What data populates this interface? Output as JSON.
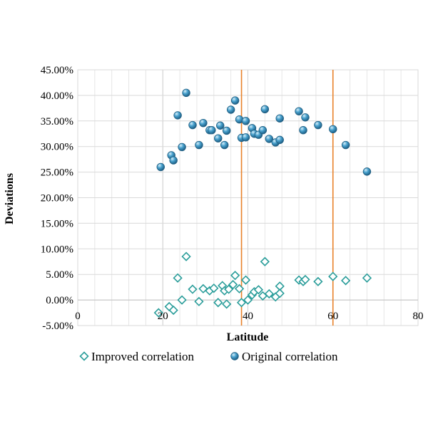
{
  "chart_data": {
    "type": "scatter",
    "xlabel": "Latitude",
    "ylabel": "Deviations",
    "xlim": [
      0,
      80
    ],
    "ylim": [
      -0.05,
      0.45
    ],
    "x_ticks": [
      0,
      20,
      40,
      60,
      80
    ],
    "x_tick_labels": [
      "0",
      "20",
      "40",
      "60",
      "80"
    ],
    "y_ticks": [
      -0.05,
      0.0,
      0.05,
      0.1,
      0.15,
      0.2,
      0.25,
      0.3,
      0.35,
      0.4,
      0.45
    ],
    "y_tick_labels": [
      "-5.00%",
      "0.00%",
      "5.00%",
      "10.00%",
      "15.00%",
      "20.00%",
      "25.00%",
      "30.00%",
      "35.00%",
      "40.00%",
      "45.00%"
    ],
    "grid": true,
    "legend_position": "bottom",
    "reference_lines_x": [
      38.5,
      60
    ],
    "reference_line_color": "#E8822A",
    "series": [
      {
        "name": "Improved correlation",
        "marker": "diamond",
        "color": "#2A9D9A",
        "points": [
          [
            19,
            -0.025
          ],
          [
            21.5,
            -0.013
          ],
          [
            22.5,
            -0.02
          ],
          [
            23.5,
            0.043
          ],
          [
            24.5,
            0.0
          ],
          [
            25.5,
            0.085
          ],
          [
            27,
            0.021
          ],
          [
            28.5,
            -0.003
          ],
          [
            29.5,
            0.022
          ],
          [
            31,
            0.018
          ],
          [
            32,
            0.023
          ],
          [
            33,
            -0.005
          ],
          [
            34,
            0.028
          ],
          [
            34.5,
            0.018
          ],
          [
            35,
            -0.008
          ],
          [
            35.5,
            0.021
          ],
          [
            36.5,
            0.03
          ],
          [
            37,
            0.048
          ],
          [
            38,
            0.022
          ],
          [
            38.5,
            -0.005
          ],
          [
            39.5,
            0.039
          ],
          [
            40,
            0.0
          ],
          [
            41,
            0.01
          ],
          [
            41.5,
            0.016
          ],
          [
            42.5,
            0.02
          ],
          [
            43.5,
            0.008
          ],
          [
            44,
            0.075
          ],
          [
            45,
            0.012
          ],
          [
            46.5,
            0.006
          ],
          [
            47.5,
            0.027
          ],
          [
            47.5,
            0.013
          ],
          [
            52,
            0.039
          ],
          [
            53,
            0.036
          ],
          [
            53.5,
            0.04
          ],
          [
            56.5,
            0.036
          ],
          [
            60,
            0.046
          ],
          [
            63,
            0.038
          ],
          [
            68,
            0.043
          ]
        ]
      },
      {
        "name": "Original correlation",
        "marker": "circle",
        "color": "#2C7FA8",
        "points": [
          [
            19.5,
            0.26
          ],
          [
            22,
            0.283
          ],
          [
            22.5,
            0.273
          ],
          [
            23.5,
            0.361
          ],
          [
            24.5,
            0.299
          ],
          [
            25.5,
            0.405
          ],
          [
            27,
            0.342
          ],
          [
            28.5,
            0.303
          ],
          [
            29.5,
            0.346
          ],
          [
            31,
            0.332
          ],
          [
            31.5,
            0.332
          ],
          [
            33,
            0.316
          ],
          [
            33.5,
            0.341
          ],
          [
            34.5,
            0.303
          ],
          [
            35,
            0.331
          ],
          [
            36,
            0.372
          ],
          [
            37,
            0.39
          ],
          [
            38,
            0.353
          ],
          [
            38.5,
            0.317
          ],
          [
            39.5,
            0.35
          ],
          [
            39.5,
            0.318
          ],
          [
            41,
            0.336
          ],
          [
            41.5,
            0.325
          ],
          [
            42.5,
            0.323
          ],
          [
            43.5,
            0.332
          ],
          [
            44,
            0.373
          ],
          [
            45,
            0.315
          ],
          [
            46.5,
            0.308
          ],
          [
            47.5,
            0.355
          ],
          [
            47.5,
            0.313
          ],
          [
            52,
            0.369
          ],
          [
            53,
            0.332
          ],
          [
            53.5,
            0.357
          ],
          [
            56.5,
            0.342
          ],
          [
            60,
            0.334
          ],
          [
            63,
            0.303
          ],
          [
            68,
            0.251
          ]
        ]
      }
    ]
  }
}
